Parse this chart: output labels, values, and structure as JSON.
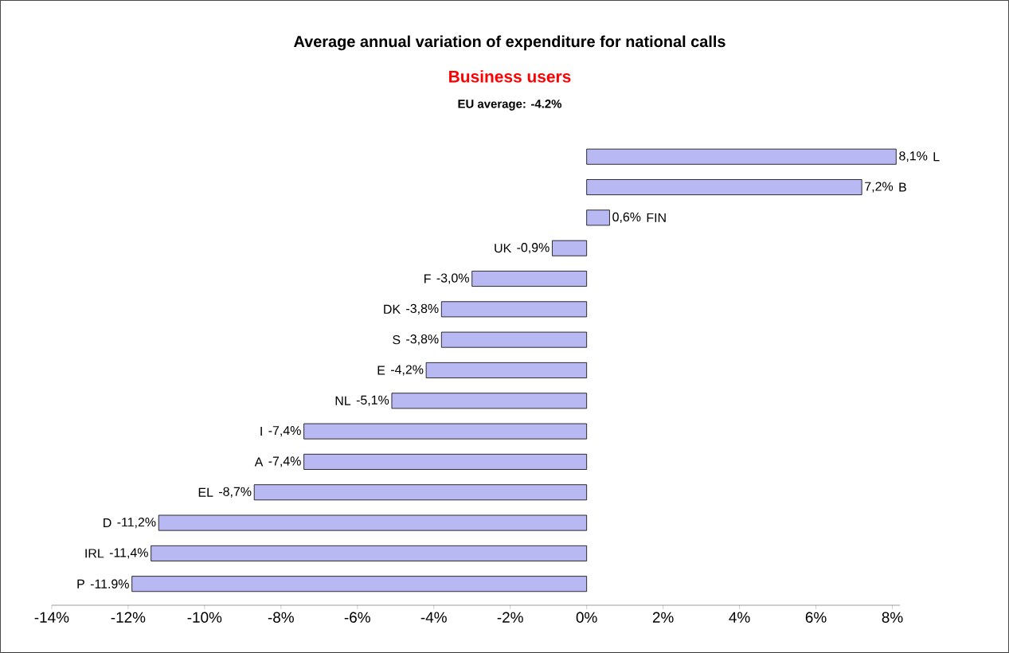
{
  "chart_data": {
    "type": "bar",
    "orientation": "horizontal",
    "title": "Average annual variation of expenditure for national calls",
    "subtitle": "Business users",
    "annotations": [
      "EU average: -4.2%"
    ],
    "categories": [
      "L",
      "B",
      "FIN",
      "UK",
      "F",
      "DK",
      "S",
      "E",
      "NL",
      "I",
      "A",
      "EL",
      "D",
      "IRL",
      "P"
    ],
    "values": [
      8.1,
      7.2,
      0.6,
      -0.9,
      -3.0,
      -3.8,
      -3.8,
      -4.2,
      -5.1,
      -7.4,
      -7.4,
      -8.7,
      -11.2,
      -11.4,
      -11.9
    ],
    "value_labels": [
      "8,1%",
      "7,2%",
      "0,6%",
      "-0,9%",
      "-3,0%",
      "-3,8%",
      "-3,8%",
      "-4,2%",
      "-5,1%",
      "-7,4%",
      "-7,4%",
      "-8,7%",
      "-11,2%",
      "-11,4%",
      "-11.9%"
    ],
    "color": "#b8b8f2",
    "xlim": [
      -14,
      8.2
    ],
    "xticks": [
      {
        "value": -14,
        "label": "-14%"
      },
      {
        "value": -12,
        "label": "-12%"
      },
      {
        "value": -10,
        "label": "-10%"
      },
      {
        "value": -8,
        "label": "-8%"
      },
      {
        "value": -6,
        "label": "-6%"
      },
      {
        "value": -4,
        "label": "-4%"
      },
      {
        "value": -2,
        "label": "-2%"
      },
      {
        "value": 0,
        "label": "0%"
      },
      {
        "value": 2,
        "label": "2%"
      },
      {
        "value": 4,
        "label": "4%"
      },
      {
        "value": 6,
        "label": "6%"
      },
      {
        "value": 8,
        "label": "8%"
      }
    ]
  }
}
